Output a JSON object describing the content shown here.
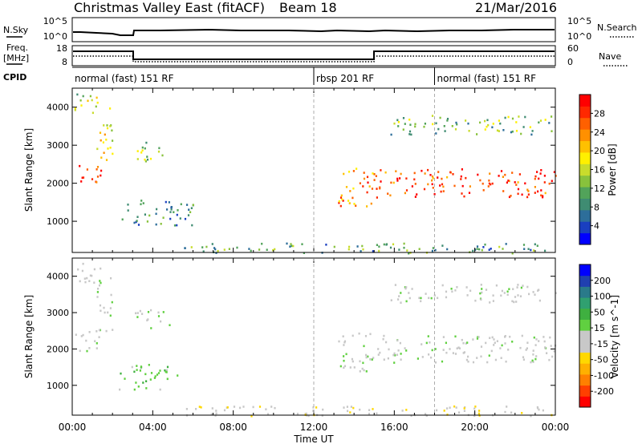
{
  "header": {
    "station": "Christmas Valley East (fitACF)",
    "beam": "Beam 18",
    "date": "21/Mar/2016"
  },
  "params": {
    "nsky_label": "N.Sky",
    "nsky_ticks": [
      "10^5",
      "10^0"
    ],
    "nsearch_label": "N.Search",
    "nsearch_ticks": [
      "10^5",
      "10^0"
    ],
    "freq_label": "Freq.",
    "freq_unit": "[MHz]",
    "freq_ticks": [
      "18",
      "8"
    ],
    "nave_label": "Nave",
    "nave_ticks": [
      "60",
      "0"
    ],
    "cpid_label": "CPID"
  },
  "cpid_segments": [
    {
      "label": "normal (fast) 151 RF",
      "start_h": 0,
      "end_h": 12
    },
    {
      "label": "rbsp 201 RF",
      "start_h": 12,
      "end_h": 18
    },
    {
      "label": "normal (fast) 151 RF",
      "start_h": 18,
      "end_h": 24
    }
  ],
  "chart_data": [
    {
      "type": "heatmap",
      "title": "Power",
      "ylabel": "Slant Range [km]",
      "xlabel": "Time UT",
      "xlim": [
        0,
        24
      ],
      "ylim": [
        180,
        4500
      ],
      "yticks": [
        1000,
        2000,
        3000,
        4000
      ],
      "colorbar": {
        "label": "Power [dB]",
        "ticks": [
          "28",
          "24",
          "20",
          "16",
          "12",
          "8",
          "4"
        ],
        "range": [
          0,
          30
        ],
        "colors": [
          "#0000ff",
          "#1a3fc0",
          "#2d6e9a",
          "#3f8c72",
          "#52a35a",
          "#88c23c",
          "#c8dc2c",
          "#fff000",
          "#ffc000",
          "#ff9000",
          "#ff6000",
          "#ff2800",
          "#ff0000"
        ]
      },
      "regions": [
        {
          "name": "early-trace",
          "t0": 0.1,
          "t1": 1.4,
          "r0": 1950,
          "r1": 2550,
          "level": 26
        },
        {
          "name": "rise",
          "t0": 1.2,
          "t1": 2.0,
          "r0": 2500,
          "r1": 4000,
          "level": 18
        },
        {
          "name": "upper-early",
          "t0": 0.1,
          "t1": 1.4,
          "r0": 3800,
          "r1": 4400,
          "level": 14
        },
        {
          "name": "mid-patch",
          "t0": 3.0,
          "t1": 4.8,
          "r0": 2600,
          "r1": 3100,
          "level": 12
        },
        {
          "name": "low-patch",
          "t0": 2.3,
          "t1": 6.0,
          "r0": 900,
          "r1": 1600,
          "level": 8
        },
        {
          "name": "evening-trace",
          "t0": 13.2,
          "t1": 15.0,
          "r0": 1400,
          "r1": 2500,
          "level": 22
        },
        {
          "name": "main-trace",
          "t0": 15.0,
          "t1": 24.0,
          "r0": 1650,
          "r1": 2400,
          "level": 26
        },
        {
          "name": "upper-trace",
          "t0": 15.8,
          "t1": 24.0,
          "r0": 3300,
          "r1": 3800,
          "level": 12
        },
        {
          "name": "ground-scatter",
          "t0": 5.5,
          "t1": 24.0,
          "r0": 180,
          "r1": 450,
          "level": 10
        }
      ]
    },
    {
      "type": "heatmap",
      "title": "Velocity",
      "ylabel": "Slant Range [km]",
      "xlabel": "Time UT",
      "xlim": [
        0,
        24
      ],
      "ylim": [
        180,
        4500
      ],
      "yticks": [
        1000,
        2000,
        3000,
        4000
      ],
      "xticks": [
        "00:00",
        "04:00",
        "08:00",
        "12:00",
        "16:00",
        "20:00",
        "00:00"
      ],
      "colorbar": {
        "label": "Velocity [m s^-1]",
        "ticks": [
          "200",
          "100",
          "50",
          "15",
          "-15",
          "-50",
          "-100",
          "-200"
        ],
        "range": [
          -250,
          250
        ],
        "colors": [
          "#ff0000",
          "#ff4000",
          "#ff8000",
          "#ffb000",
          "#ffd800",
          "#c8c8c8",
          "#c8c8c8",
          "#60d040",
          "#3fb040",
          "#30a070",
          "#2a7a8a",
          "#2040b0",
          "#0000ff"
        ]
      },
      "regions": [
        {
          "name": "early-trace",
          "t0": 0.1,
          "t1": 1.4,
          "r0": 1950,
          "r1": 2550,
          "level": 0
        },
        {
          "name": "rise",
          "t0": 1.2,
          "t1": 2.0,
          "r0": 2500,
          "r1": 4000,
          "level": 0
        },
        {
          "name": "upper-early",
          "t0": 0.1,
          "t1": 1.4,
          "r0": 3800,
          "r1": 4400,
          "level": -20
        },
        {
          "name": "mid-patch",
          "t0": 3.0,
          "t1": 4.8,
          "r0": 2600,
          "r1": 3100,
          "level": 10
        },
        {
          "name": "low-patch",
          "t0": 2.3,
          "t1": 5.2,
          "r0": 900,
          "r1": 1600,
          "level": 40
        },
        {
          "name": "evening-trace",
          "t0": 13.2,
          "t1": 15.0,
          "r0": 1400,
          "r1": 2500,
          "level": 0
        },
        {
          "name": "main-trace",
          "t0": 15.0,
          "t1": 24.0,
          "r0": 1650,
          "r1": 2400,
          "level": 0
        },
        {
          "name": "upper-trace",
          "t0": 15.8,
          "t1": 24.0,
          "r0": 3300,
          "r1": 3800,
          "level": -5
        },
        {
          "name": "ground-scatter",
          "t0": 5.5,
          "t1": 24.0,
          "r0": 180,
          "r1": 450,
          "level": -40
        }
      ]
    }
  ]
}
